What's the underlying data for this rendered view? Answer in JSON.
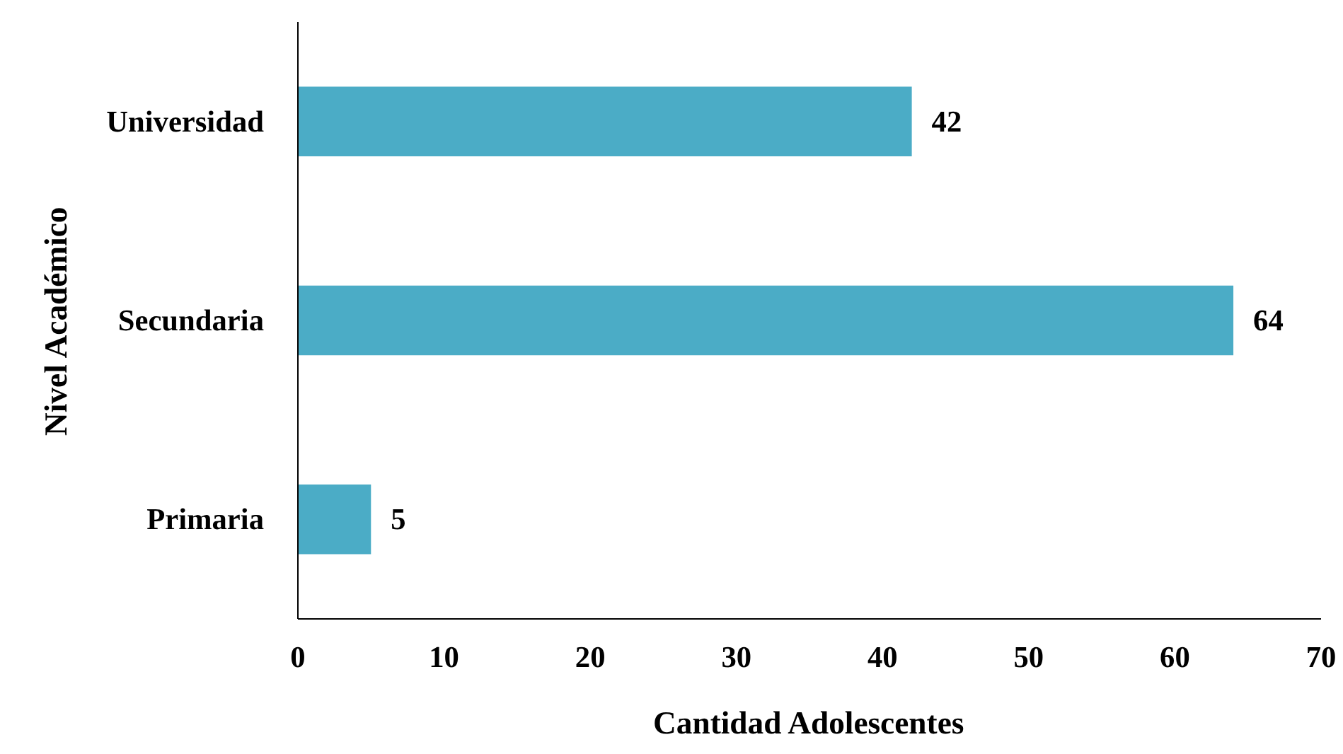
{
  "chart_data": {
    "type": "bar",
    "orientation": "horizontal",
    "categories": [
      "Universidad",
      "Secundaria",
      "Primaria"
    ],
    "values": [
      42,
      64,
      5
    ],
    "color": "#4bacc6",
    "xlim": [
      0,
      70
    ],
    "xticks": [
      0,
      10,
      20,
      30,
      40,
      50,
      60,
      70
    ],
    "xlabel": "Cantidad Adolescentes",
    "ylabel": "Nivel Académico",
    "data_labels": true,
    "grid": false
  }
}
